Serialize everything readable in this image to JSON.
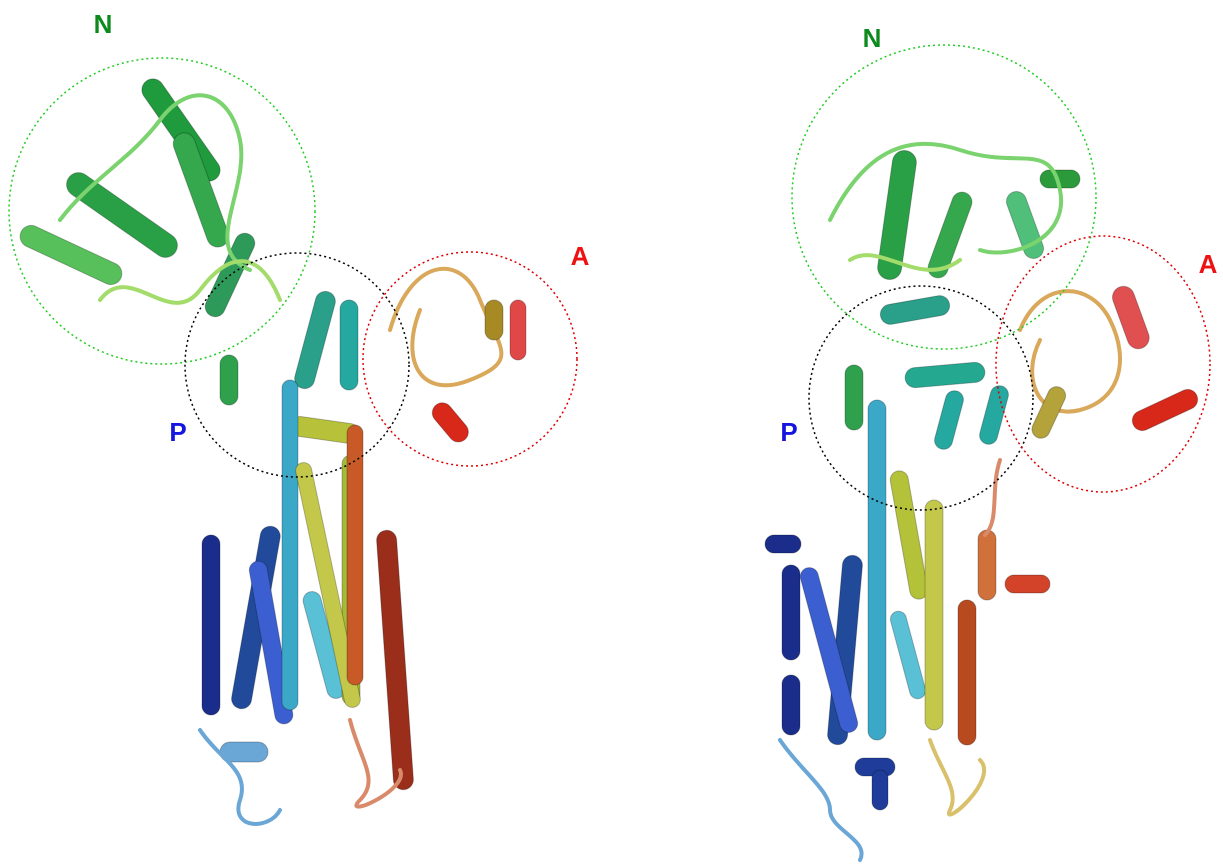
{
  "left": {
    "domain_labels": {
      "n": "N",
      "a": "A",
      "p": "P"
    }
  },
  "right": {
    "domain_labels": {
      "n": "N",
      "a": "A",
      "p": "P"
    }
  }
}
